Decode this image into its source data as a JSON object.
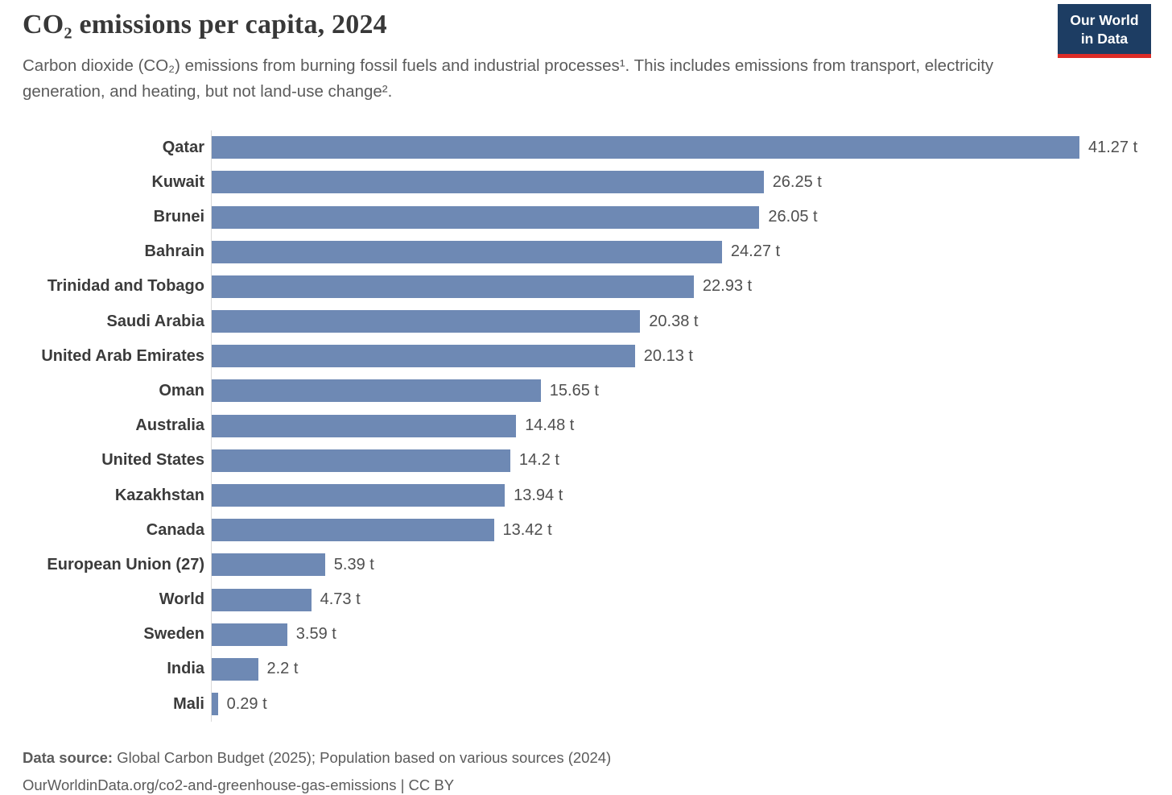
{
  "header": {
    "title": "CO₂ emissions per capita, 2024",
    "subtitle": "Carbon dioxide (CO₂) emissions from burning fossil fuels and industrial processes¹. This includes emissions from transport, electricity generation, and heating, but not land-use change².",
    "logo": {
      "line1": "Our World",
      "line2": "in Data",
      "bg_color": "#1d3d63",
      "accent_color": "#dc2c27"
    }
  },
  "chart_data": {
    "type": "bar",
    "orientation": "horizontal",
    "title": "CO₂ emissions per capita, 2024",
    "xlabel": "",
    "ylabel": "",
    "unit": "t",
    "xlim": [
      0,
      41.27
    ],
    "grid": false,
    "legend": false,
    "bar_color": "#6e89b4",
    "categories": [
      "Qatar",
      "Kuwait",
      "Brunei",
      "Bahrain",
      "Trinidad and Tobago",
      "Saudi Arabia",
      "United Arab Emirates",
      "Oman",
      "Australia",
      "United States",
      "Kazakhstan",
      "Canada",
      "European Union (27)",
      "World",
      "Sweden",
      "India",
      "Mali"
    ],
    "values": [
      41.27,
      26.25,
      26.05,
      24.27,
      22.93,
      20.38,
      20.13,
      15.65,
      14.48,
      14.2,
      13.94,
      13.42,
      5.39,
      4.73,
      3.59,
      2.2,
      0.29
    ],
    "value_labels": [
      "41.27 t",
      "26.25 t",
      "26.05 t",
      "24.27 t",
      "22.93 t",
      "20.38 t",
      "20.13 t",
      "15.65 t",
      "14.48 t",
      "14.2 t",
      "13.94 t",
      "13.42 t",
      "5.39 t",
      "4.73 t",
      "3.59 t",
      "2.2 t",
      "0.29 t"
    ]
  },
  "footer": {
    "source_label": "Data source:",
    "source_text": " Global Carbon Budget (2025); Population based on various sources (2024)",
    "url_line": "OurWorldinData.org/co2-and-greenhouse-gas-emissions | CC BY"
  }
}
